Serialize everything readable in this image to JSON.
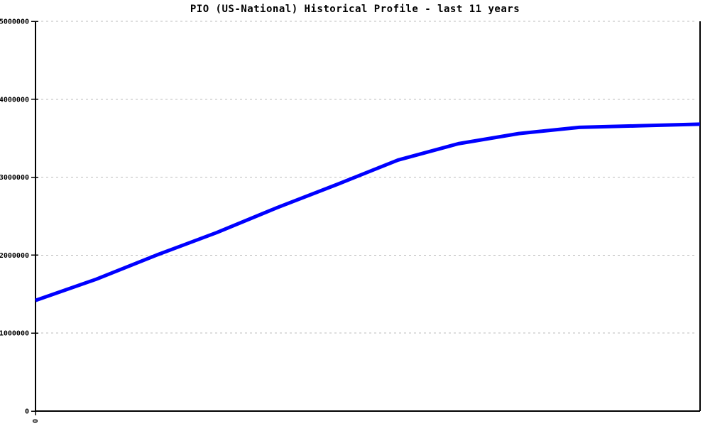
{
  "window": {
    "background": "#ffffff"
  },
  "colors": {
    "line": "#0000ff",
    "grid": "#bcbcbc",
    "axis": "#000000",
    "text": "#000000"
  },
  "chart_data": {
    "type": "line",
    "title": "PIO (US-National) Historical Profile - last 11 years",
    "xlabel": "",
    "ylabel": "",
    "xlim": [
      0,
      11
    ],
    "ylim": [
      0,
      5000000
    ],
    "grid": true,
    "grid_style": "dashed",
    "legend": "none",
    "x": [
      0,
      1,
      2,
      3,
      4,
      5,
      6,
      7,
      8,
      9,
      10,
      11
    ],
    "series": [
      {
        "name": "PIO (US-National)",
        "color": "#0000ff",
        "values": [
          1420000,
          1690000,
          2000000,
          2290000,
          2610000,
          2910000,
          3220000,
          3430000,
          3560000,
          3640000,
          3660000,
          3680000
        ]
      }
    ],
    "y_ticks": [
      0,
      1000000,
      2000000,
      3000000,
      4000000,
      5000000
    ],
    "y_tick_labels": [
      "0",
      "1000000",
      "2000000",
      "3000000",
      "4000000",
      "5000000"
    ],
    "x_tick_positions": [
      0
    ],
    "x_tick_labels": [
      "0"
    ],
    "x_tick_label_rotation_deg": -90
  }
}
